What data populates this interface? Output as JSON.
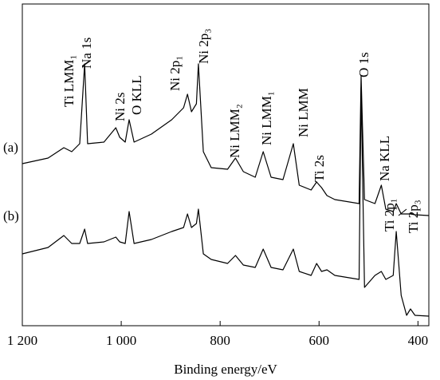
{
  "chart_data": {
    "type": "line",
    "x_label": "Binding energy/eV",
    "xlim": [
      1200,
      378
    ],
    "ylim": [
      0,
      403
    ],
    "xticks": [
      {
        "value": 1200,
        "label": "1 200"
      },
      {
        "value": 1000,
        "label": "1 000"
      },
      800,
      600,
      400
    ],
    "x": [
      1200,
      1148,
      1116,
      1100,
      1084,
      1074,
      1068,
      1035,
      1011,
      1003,
      992,
      984,
      974,
      939,
      898,
      874,
      866,
      858,
      848,
      844,
      834,
      818,
      785,
      769,
      753,
      729,
      713,
      697,
      673,
      652,
      640,
      616,
      605,
      595,
      584,
      568,
      519,
      515,
      508,
      487,
      474,
      465,
      450,
      444,
      434,
      423,
      415,
      406,
      378
    ],
    "series": [
      {
        "name": "(a)",
        "color": "#000000",
        "values": [
          203,
          210,
          223,
          218,
          228,
          328,
          228,
          230,
          248,
          236,
          230,
          258,
          230,
          240,
          258,
          273,
          290,
          268,
          278,
          328,
          218,
          198,
          196,
          210,
          193,
          186,
          218,
          186,
          183,
          228,
          176,
          170,
          180,
          173,
          163,
          158,
          153,
          313,
          158,
          153,
          176,
          146,
          143,
          153,
          140,
          140,
          140,
          139,
          138
        ]
      },
      {
        "name": "(b)",
        "color": "#000000",
        "values": [
          90,
          98,
          113,
          103,
          103,
          121,
          103,
          105,
          111,
          105,
          103,
          143,
          103,
          108,
          118,
          123,
          140,
          123,
          128,
          146,
          90,
          83,
          78,
          88,
          76,
          73,
          96,
          73,
          70,
          96,
          68,
          63,
          78,
          68,
          70,
          63,
          58,
          298,
          48,
          63,
          68,
          58,
          63,
          118,
          38,
          13,
          21,
          13,
          12
        ]
      }
    ],
    "annotations": [
      "Ti LMM₁",
      "Na 1s",
      "Ni 2s",
      "O KLL",
      "Ni 2p₁",
      "Ni 2p₃",
      "Ni LMM₂",
      "Ni LMM₁",
      "Ni LMM",
      "O 1s",
      "Ti 2s",
      "Na KLL",
      "Ti 2p₁",
      "Ti 2p₃"
    ]
  }
}
